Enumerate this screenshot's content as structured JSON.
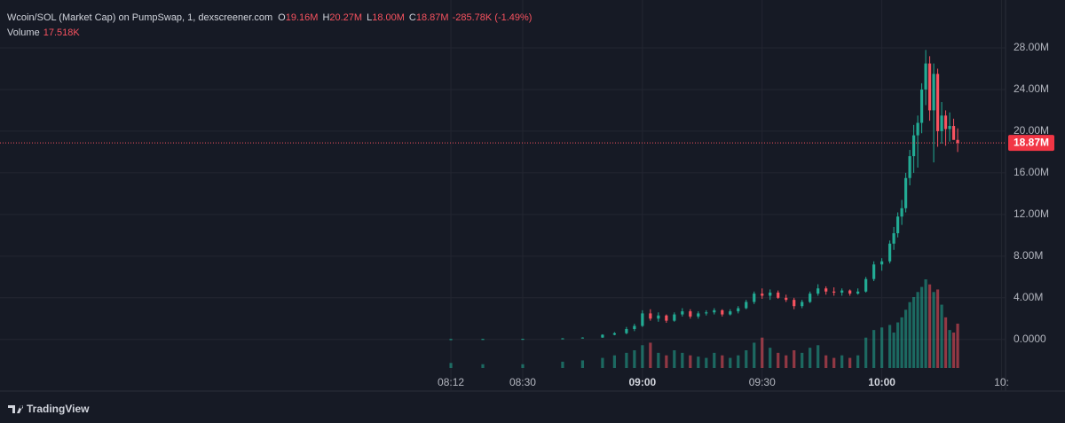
{
  "header": {
    "title": "Wcoin/SOL (Market Cap) on PumpSwap, 1, dexscreener.com",
    "ohlc": [
      {
        "key": "O",
        "text": "19.16M"
      },
      {
        "key": "H",
        "text": "20.27M"
      },
      {
        "key": "L",
        "text": "18.00M"
      },
      {
        "key": "C",
        "text": "18.87M"
      }
    ],
    "change": "-285.78K (-1.49%)",
    "volume_key": "Volume",
    "volume_text": "17.518K"
  },
  "branding": "TradingView",
  "chart_data": {
    "type": "candlestick",
    "x": [
      "08:12",
      "08:20",
      "08:30",
      "08:40",
      "08:45",
      "08:50",
      "08:53",
      "08:56",
      "08:58",
      "09:00",
      "09:02",
      "09:04",
      "09:06",
      "09:08",
      "09:10",
      "09:12",
      "09:14",
      "09:16",
      "09:18",
      "09:20",
      "09:22",
      "09:24",
      "09:26",
      "09:28",
      "09:30",
      "09:32",
      "09:34",
      "09:36",
      "09:38",
      "09:40",
      "09:42",
      "09:44",
      "09:46",
      "09:48",
      "09:50",
      "09:52",
      "09:54",
      "09:56",
      "09:58",
      "10:00",
      "10:02",
      "10:03",
      "10:04",
      "10:05",
      "10:06",
      "10:07",
      "10:08",
      "10:09",
      "10:10",
      "10:11",
      "10:12",
      "10:13",
      "10:14",
      "10:15",
      "10:16",
      "10:17",
      "10:18",
      "10:19"
    ],
    "open": [
      0.02,
      0.03,
      0.04,
      0.05,
      0.1,
      0.18,
      0.45,
      0.6,
      1.0,
      1.3,
      2.5,
      2.0,
      2.3,
      1.8,
      2.4,
      2.7,
      2.2,
      2.5,
      2.6,
      2.8,
      2.4,
      2.7,
      3.0,
      3.6,
      4.4,
      4.2,
      4.5,
      4.0,
      3.8,
      3.2,
      3.6,
      4.4,
      4.9,
      4.6,
      4.5,
      4.7,
      4.4,
      4.6,
      5.8,
      7.2,
      7.5,
      9.2,
      10.2,
      11.8,
      12.6,
      15.5,
      17.6,
      19.6,
      20.8,
      24.0,
      26.5,
      22.0,
      25.5,
      20.0,
      21.5,
      20.2,
      20.5,
      19.16
    ],
    "high": [
      0.03,
      0.04,
      0.05,
      0.12,
      0.2,
      0.5,
      0.7,
      1.2,
      1.5,
      2.8,
      2.9,
      2.6,
      2.4,
      2.6,
      3.0,
      2.9,
      2.7,
      2.8,
      3.0,
      2.9,
      2.9,
      3.2,
      3.8,
      4.6,
      4.9,
      4.8,
      4.7,
      4.3,
      4.0,
      3.8,
      4.6,
      5.3,
      5.1,
      5.0,
      4.9,
      4.8,
      4.9,
      6.0,
      7.5,
      7.8,
      9.5,
      10.8,
      12.2,
      13.4,
      16.0,
      18.2,
      20.6,
      21.5,
      24.6,
      27.8,
      27.2,
      26.5,
      26.0,
      22.8,
      22.0,
      21.8,
      21.2,
      20.27
    ],
    "low": [
      0.02,
      0.03,
      0.04,
      0.05,
      0.1,
      0.15,
      0.4,
      0.5,
      0.8,
      1.2,
      1.8,
      1.7,
      1.6,
      1.7,
      2.2,
      2.0,
      2.0,
      2.3,
      2.4,
      2.2,
      2.3,
      2.5,
      2.9,
      3.4,
      3.9,
      3.8,
      3.9,
      3.6,
      2.9,
      3.0,
      3.5,
      4.2,
      4.3,
      4.2,
      4.2,
      4.2,
      4.3,
      4.5,
      5.6,
      6.6,
      7.3,
      8.6,
      9.8,
      11.0,
      12.2,
      14.8,
      16.0,
      16.5,
      19.8,
      22.5,
      21.0,
      17.0,
      18.5,
      18.8,
      18.6,
      19.0,
      19.2,
      18.0
    ],
    "close": [
      0.03,
      0.04,
      0.05,
      0.1,
      0.18,
      0.45,
      0.6,
      1.0,
      1.3,
      2.5,
      2.0,
      2.3,
      1.8,
      2.4,
      2.7,
      2.2,
      2.5,
      2.6,
      2.8,
      2.4,
      2.7,
      3.0,
      3.6,
      4.4,
      4.2,
      4.5,
      4.0,
      3.8,
      3.2,
      3.6,
      4.4,
      4.9,
      4.6,
      4.5,
      4.7,
      4.4,
      4.6,
      5.8,
      7.2,
      7.5,
      9.2,
      10.2,
      11.8,
      12.6,
      15.5,
      17.6,
      19.6,
      20.8,
      24.0,
      26.5,
      22.0,
      25.5,
      20.0,
      21.5,
      20.2,
      20.5,
      19.16,
      18.87
    ],
    "volume": [
      2,
      1.5,
      1.5,
      2.5,
      3,
      4,
      5,
      6,
      7,
      9,
      10,
      6,
      5,
      7,
      6,
      5,
      4.5,
      4,
      6,
      5,
      4,
      5,
      7,
      10,
      12,
      8,
      6,
      5,
      7,
      6,
      8,
      9,
      5,
      4,
      5,
      4,
      5,
      12,
      15,
      16,
      17,
      14,
      18,
      20,
      23,
      26,
      28,
      30,
      32,
      35,
      33,
      30,
      31,
      25,
      20,
      15,
      14,
      17.518
    ],
    "up_color": "#22ab94",
    "down_color": "#f7525f",
    "xlim": [
      "06:19",
      "10:31"
    ],
    "xticks": [
      {
        "value": "08:12",
        "label": "08:12"
      },
      {
        "value": "08:30",
        "label": "08:30"
      },
      {
        "value": "09:00",
        "label": "09:00"
      },
      {
        "value": "09:30",
        "label": "09:30"
      },
      {
        "value": "10:00",
        "label": "10:00"
      },
      {
        "value": "10:30",
        "label": "10:"
      }
    ],
    "ylim": [
      -3,
      32
    ],
    "yticks": [
      {
        "value": 0,
        "label": "0.0000"
      },
      {
        "value": 4,
        "label": "4.00M"
      },
      {
        "value": 8,
        "label": "8.00M"
      },
      {
        "value": 12,
        "label": "12.00M"
      },
      {
        "value": 16,
        "label": "16.00M"
      },
      {
        "value": 20,
        "label": "20.00M"
      },
      {
        "value": 24,
        "label": "24.00M"
      },
      {
        "value": 28,
        "label": "28.00M"
      }
    ],
    "last_price": {
      "value": 18.87,
      "label": "18.87M"
    },
    "grid": true
  }
}
